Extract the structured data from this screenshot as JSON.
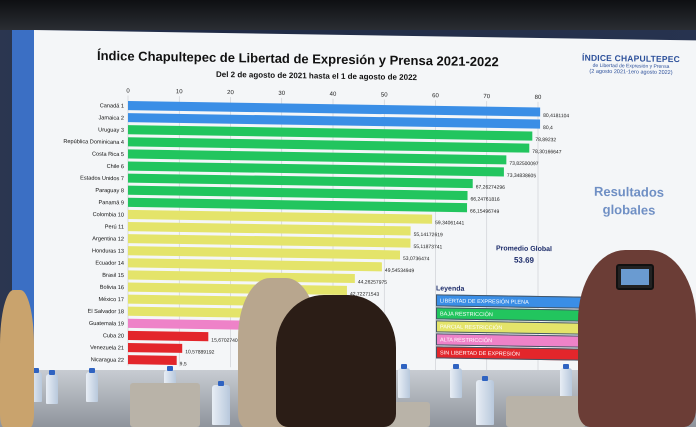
{
  "slide": {
    "title": "Índice Chapultepec de Libertad de Expresión y Prensa 2021-2022",
    "subtitle": "Del 2 de agosto de 2021 hasta el 1 de agosto de 2022",
    "brand_line1": "ÍNDICE CHAPULTEPEC",
    "brand_line2": "de Libertad de Expresión y Prensa",
    "brand_line3": "(2 agosto 2021-1ero agosto 2022)",
    "resultados": "Resultados globales",
    "promedio_label": "Promedio Global",
    "promedio_value": "53.69",
    "legend_title": "Leyenda",
    "legend": [
      {
        "label": "LIBERTAD DE EXPRESIÓN PLENA",
        "color": "#3a8ee6"
      },
      {
        "label": "BAJA RESTRICCIÓN",
        "color": "#22c55e"
      },
      {
        "label": "PARCIAL RESTRICCIÓN",
        "color": "#e4e46a"
      },
      {
        "label": "ALTA RESTRICCIÓN",
        "color": "#ee82c8"
      },
      {
        "label": "SIN LIBERTAD DE EXPRESIÓN",
        "color": "#e3262b"
      }
    ]
  },
  "chart_data": {
    "type": "bar",
    "orientation": "horizontal",
    "title": "Índice Chapultepec de Libertad de Expresión y Prensa 2021-2022",
    "xlim": [
      0,
      80
    ],
    "xticks": [
      "0",
      "10",
      "20",
      "30",
      "40",
      "50",
      "60",
      "70",
      "80"
    ],
    "categories": [
      "Canadá 1",
      "Jamaica 2",
      "Uruguay 3",
      "República Dominicana 4",
      "Costa Rica 5",
      "Chile 6",
      "Estados Unidos 7",
      "Paraguay 8",
      "Panamá 9",
      "Colombia 10",
      "Perú 11",
      "Argentina 12",
      "Honduras 13",
      "Ecuador 14",
      "Brasil 15",
      "Bolivia 16",
      "México 17",
      "El Salvador 18",
      "Guatemala 19",
      "Cuba 20",
      "Venezuela 21",
      "Nicaragua 22"
    ],
    "values": [
      80.4181104,
      80.4,
      78.89232,
      78.30166647,
      73.82500097,
      73.34838605,
      67.26274296,
      66.24761816,
      66.15496749,
      59.34061441,
      55.14172619,
      55.11873741,
      53.0736474,
      49.54534949,
      44.26257975,
      42.72271543,
      40.5,
      39.8,
      38,
      15.67027406,
      10.57889192,
      9.5
    ],
    "value_labels": [
      "80,4181104",
      "80,4",
      "78,89232",
      "78,30166647",
      "73,82500097",
      "73,34838605",
      "67,26274296",
      "66,24761816",
      "66,15496749",
      "59,34061441",
      "55,14172619",
      "55,11873741",
      "53,0736474",
      "49,54534949",
      "44,26257975",
      "42,72271543",
      "",
      "",
      "",
      "15,67027406",
      "10,57889192",
      "9,5"
    ],
    "colors": [
      "#3a8ee6",
      "#3a8ee6",
      "#22c55e",
      "#22c55e",
      "#22c55e",
      "#22c55e",
      "#22c55e",
      "#22c55e",
      "#22c55e",
      "#e4e46a",
      "#e4e46a",
      "#e4e46a",
      "#e4e46a",
      "#e4e46a",
      "#e4e46a",
      "#e4e46a",
      "#e4e46a",
      "#e4e46a",
      "#ee82c8",
      "#e3262b",
      "#e3262b",
      "#e3262b"
    ]
  }
}
